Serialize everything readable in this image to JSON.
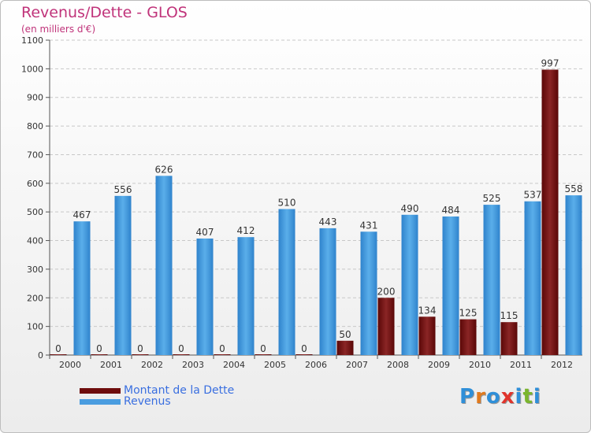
{
  "title": "Revenus/Dette - GLOS",
  "subtitle": "(en milliers d'€)",
  "legend": [
    {
      "label": "Montant de la Dette",
      "color": "#6e0c0c"
    },
    {
      "label": "Revenus",
      "color": "#4a9de0"
    }
  ],
  "logo": {
    "text": "Proxiti",
    "letter_colors": [
      "#2f8fd8",
      "#e07a1f",
      "#2f8fd8",
      "#e0342c",
      "#2f8fd8",
      "#7ab52d",
      "#2f8fd8"
    ]
  },
  "chart_data": {
    "type": "bar",
    "categories": [
      "2000",
      "2001",
      "2002",
      "2003",
      "2004",
      "2005",
      "2006",
      "2007",
      "2008",
      "2009",
      "2010",
      "2011",
      "2012"
    ],
    "series": [
      {
        "name": "Montant de la Dette",
        "values": [
          0,
          0,
          0,
          0,
          0,
          0,
          0,
          50,
          200,
          134,
          125,
          115,
          997
        ]
      },
      {
        "name": "Revenus",
        "values": [
          467,
          556,
          626,
          407,
          412,
          510,
          443,
          431,
          490,
          484,
          525,
          537,
          558
        ]
      }
    ],
    "ylim": [
      0,
      1100
    ],
    "yticks": [
      0,
      100,
      200,
      300,
      400,
      500,
      600,
      700,
      800,
      900,
      1000,
      1100
    ],
    "grid": true
  }
}
